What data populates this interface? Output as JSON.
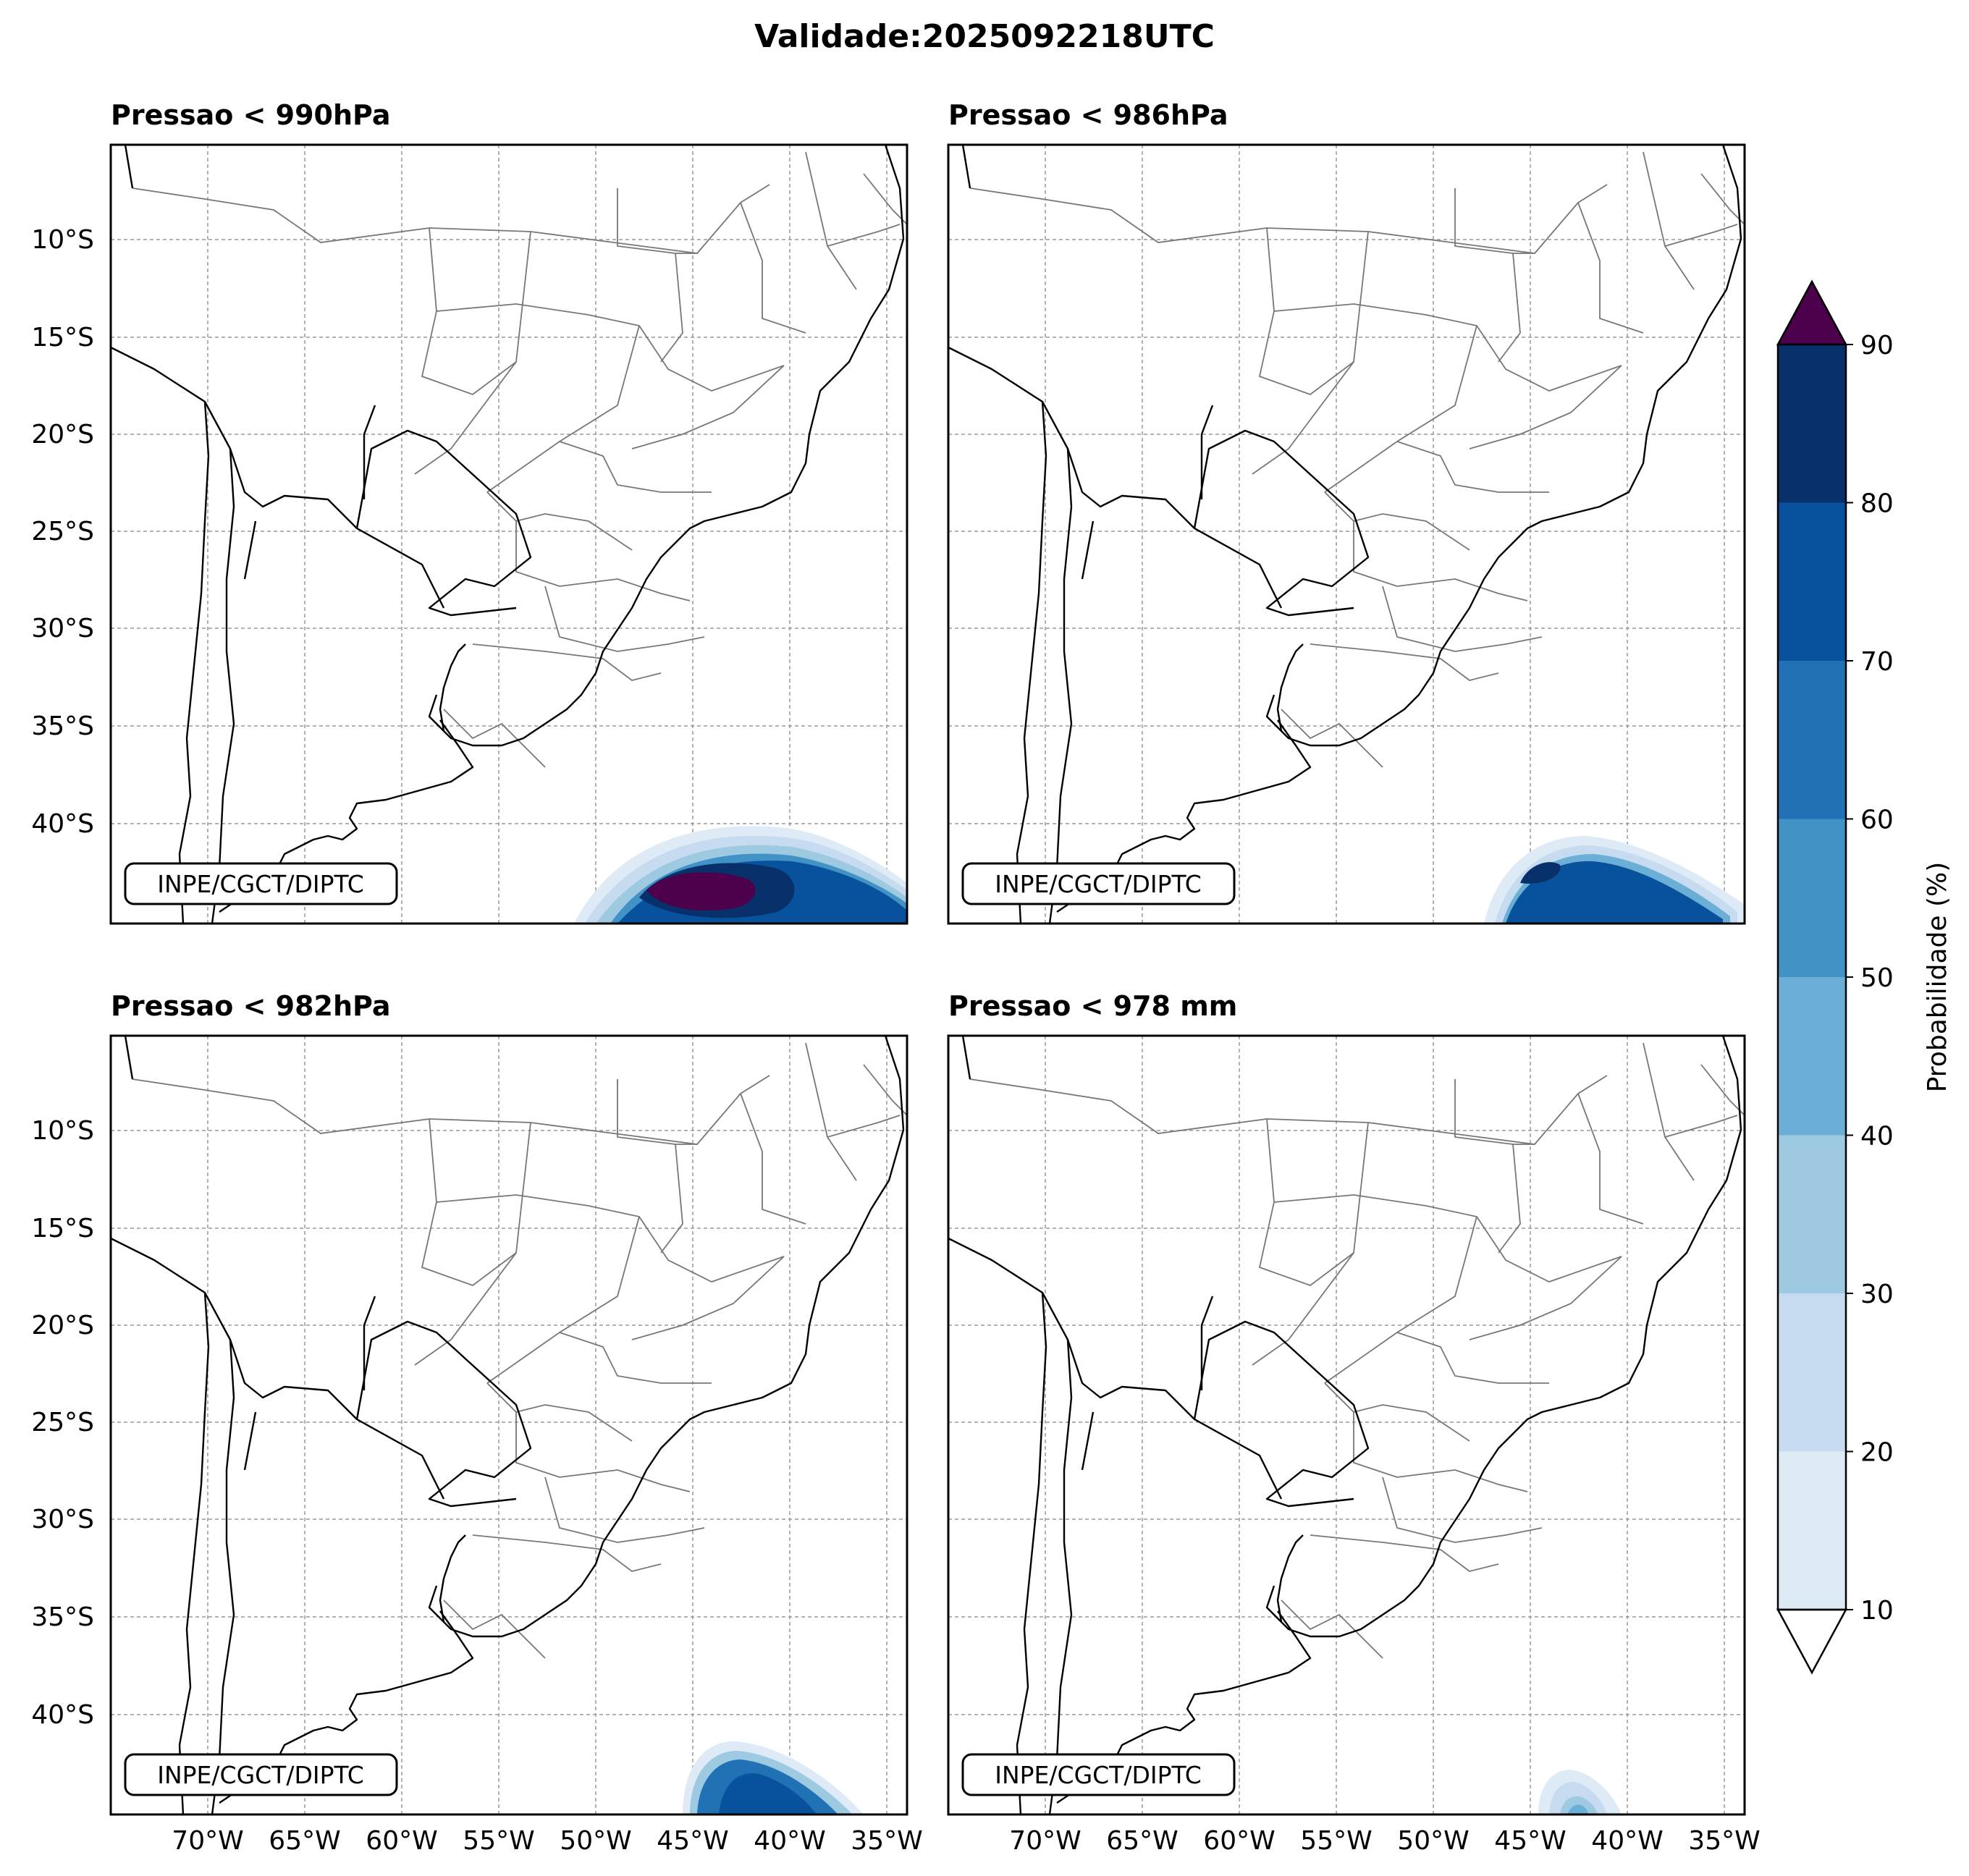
{
  "title": "Validade:2025092218UTC",
  "panels": [
    {
      "id": "p990",
      "title": "Pressao < 990hPa"
    },
    {
      "id": "p986",
      "title": "Pressao < 986hPa"
    },
    {
      "id": "p982",
      "title": "Pressao < 982hPa"
    },
    {
      "id": "p978",
      "title": "Pressao < 978 mm"
    }
  ],
  "credit": "INPE/CGCT/DIPTC",
  "lat_ticks": [
    "10°S",
    "15°S",
    "20°S",
    "25°S",
    "30°S",
    "35°S",
    "40°S"
  ],
  "lon_ticks": [
    "70°W",
    "65°W",
    "60°W",
    "55°W",
    "50°W",
    "45°W",
    "40°W",
    "35°W"
  ],
  "colorbar": {
    "label": "Probabilidade (%)",
    "ticks": [
      "10",
      "20",
      "30",
      "40",
      "50",
      "60",
      "70",
      "80",
      "90"
    ],
    "colors": [
      "#deebf7",
      "#c6dbef",
      "#9ecae1",
      "#6baed6",
      "#4292c6",
      "#2171b5",
      "#08519c",
      "#08306b"
    ],
    "over_color": "#4d004b",
    "under_color": "#ffffff"
  },
  "chart_data": {
    "type": "map",
    "map_extent": {
      "lon_min": -75,
      "lon_max": -34,
      "lat_min": -45,
      "lat_max": -5
    },
    "variable": "Probabilidade (%)",
    "levels": [
      10,
      20,
      30,
      40,
      50,
      60,
      70,
      80,
      90
    ],
    "probability_areas": [
      {
        "panel": "p990",
        "center_lon": -41.5,
        "center_lat": -43.5,
        "max_probability": ">90"
      },
      {
        "panel": "p986",
        "center_lon": -41.0,
        "center_lat": -43.8,
        "max_probability": 80
      },
      {
        "panel": "p982",
        "center_lon": -40.5,
        "center_lat": -44.5,
        "max_probability": 80
      },
      {
        "panel": "p978",
        "center_lon": -42.5,
        "center_lat": -44.5,
        "max_probability": 40
      }
    ]
  }
}
